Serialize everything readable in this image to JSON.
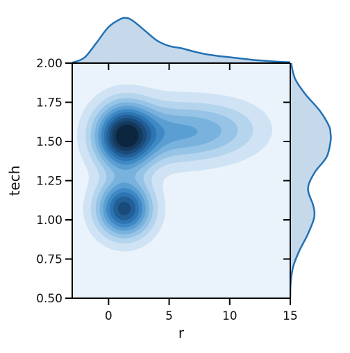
{
  "chart_data": {
    "type": "kde_joint",
    "title": "",
    "xlabel": "r",
    "ylabel": "tech",
    "xlim": [
      -3,
      15
    ],
    "ylim": [
      0.5,
      2.0
    ],
    "xticks": [
      0,
      5,
      10,
      15
    ],
    "xtick_labels": [
      "0",
      "5",
      "10",
      "15"
    ],
    "yticks": [
      0.5,
      0.75,
      1.0,
      1.25,
      1.5,
      1.75,
      2.0
    ],
    "ytick_labels": [
      "0.50",
      "0.75",
      "1.00",
      "1.25",
      "1.50",
      "1.75",
      "2.00"
    ],
    "grid": false,
    "colors": {
      "line": "#2271b4",
      "marginal_fill": "#c6d9ea",
      "joint_background": "#eaf3fb",
      "levels": [
        "#cfe3f4",
        "#b5d4ee",
        "#97c4e6",
        "#78b2dd",
        "#5b9fd2",
        "#3f89c5",
        "#2d74b2",
        "#225f97",
        "#1b4b79",
        "#153a5e",
        "#0d263f"
      ]
    },
    "density_modes": [
      {
        "x": 1.3,
        "y": 1.53,
        "sx": 1.6,
        "sy": 0.14,
        "weight": 1.0
      },
      {
        "x": 1.3,
        "y": 1.07,
        "sx": 1.5,
        "sy": 0.12,
        "weight": 0.9
      },
      {
        "x": 5.5,
        "y": 1.56,
        "sx": 3.2,
        "sy": 0.13,
        "weight": 0.45
      },
      {
        "x": 10.0,
        "y": 1.58,
        "sx": 2.4,
        "sy": 0.12,
        "weight": 0.15
      }
    ],
    "marginal_x": {
      "x": [
        -3,
        -2,
        -1,
        0,
        1,
        1.5,
        2,
        3,
        4,
        5,
        6,
        7,
        8,
        9,
        10,
        11,
        12,
        13,
        14,
        15
      ],
      "density": [
        0.01,
        0.12,
        0.45,
        0.8,
        0.98,
        1.0,
        0.94,
        0.72,
        0.5,
        0.38,
        0.33,
        0.26,
        0.2,
        0.16,
        0.13,
        0.1,
        0.07,
        0.05,
        0.03,
        0.02
      ]
    },
    "marginal_y": {
      "y": [
        0.5,
        0.6,
        0.7,
        0.8,
        0.9,
        1.0,
        1.05,
        1.1,
        1.2,
        1.3,
        1.4,
        1.5,
        1.55,
        1.6,
        1.7,
        1.8,
        1.9,
        2.0
      ],
      "density": [
        0.0,
        0.01,
        0.07,
        0.22,
        0.42,
        0.58,
        0.6,
        0.56,
        0.44,
        0.6,
        0.9,
        1.0,
        1.0,
        0.96,
        0.72,
        0.38,
        0.12,
        0.02
      ]
    }
  }
}
